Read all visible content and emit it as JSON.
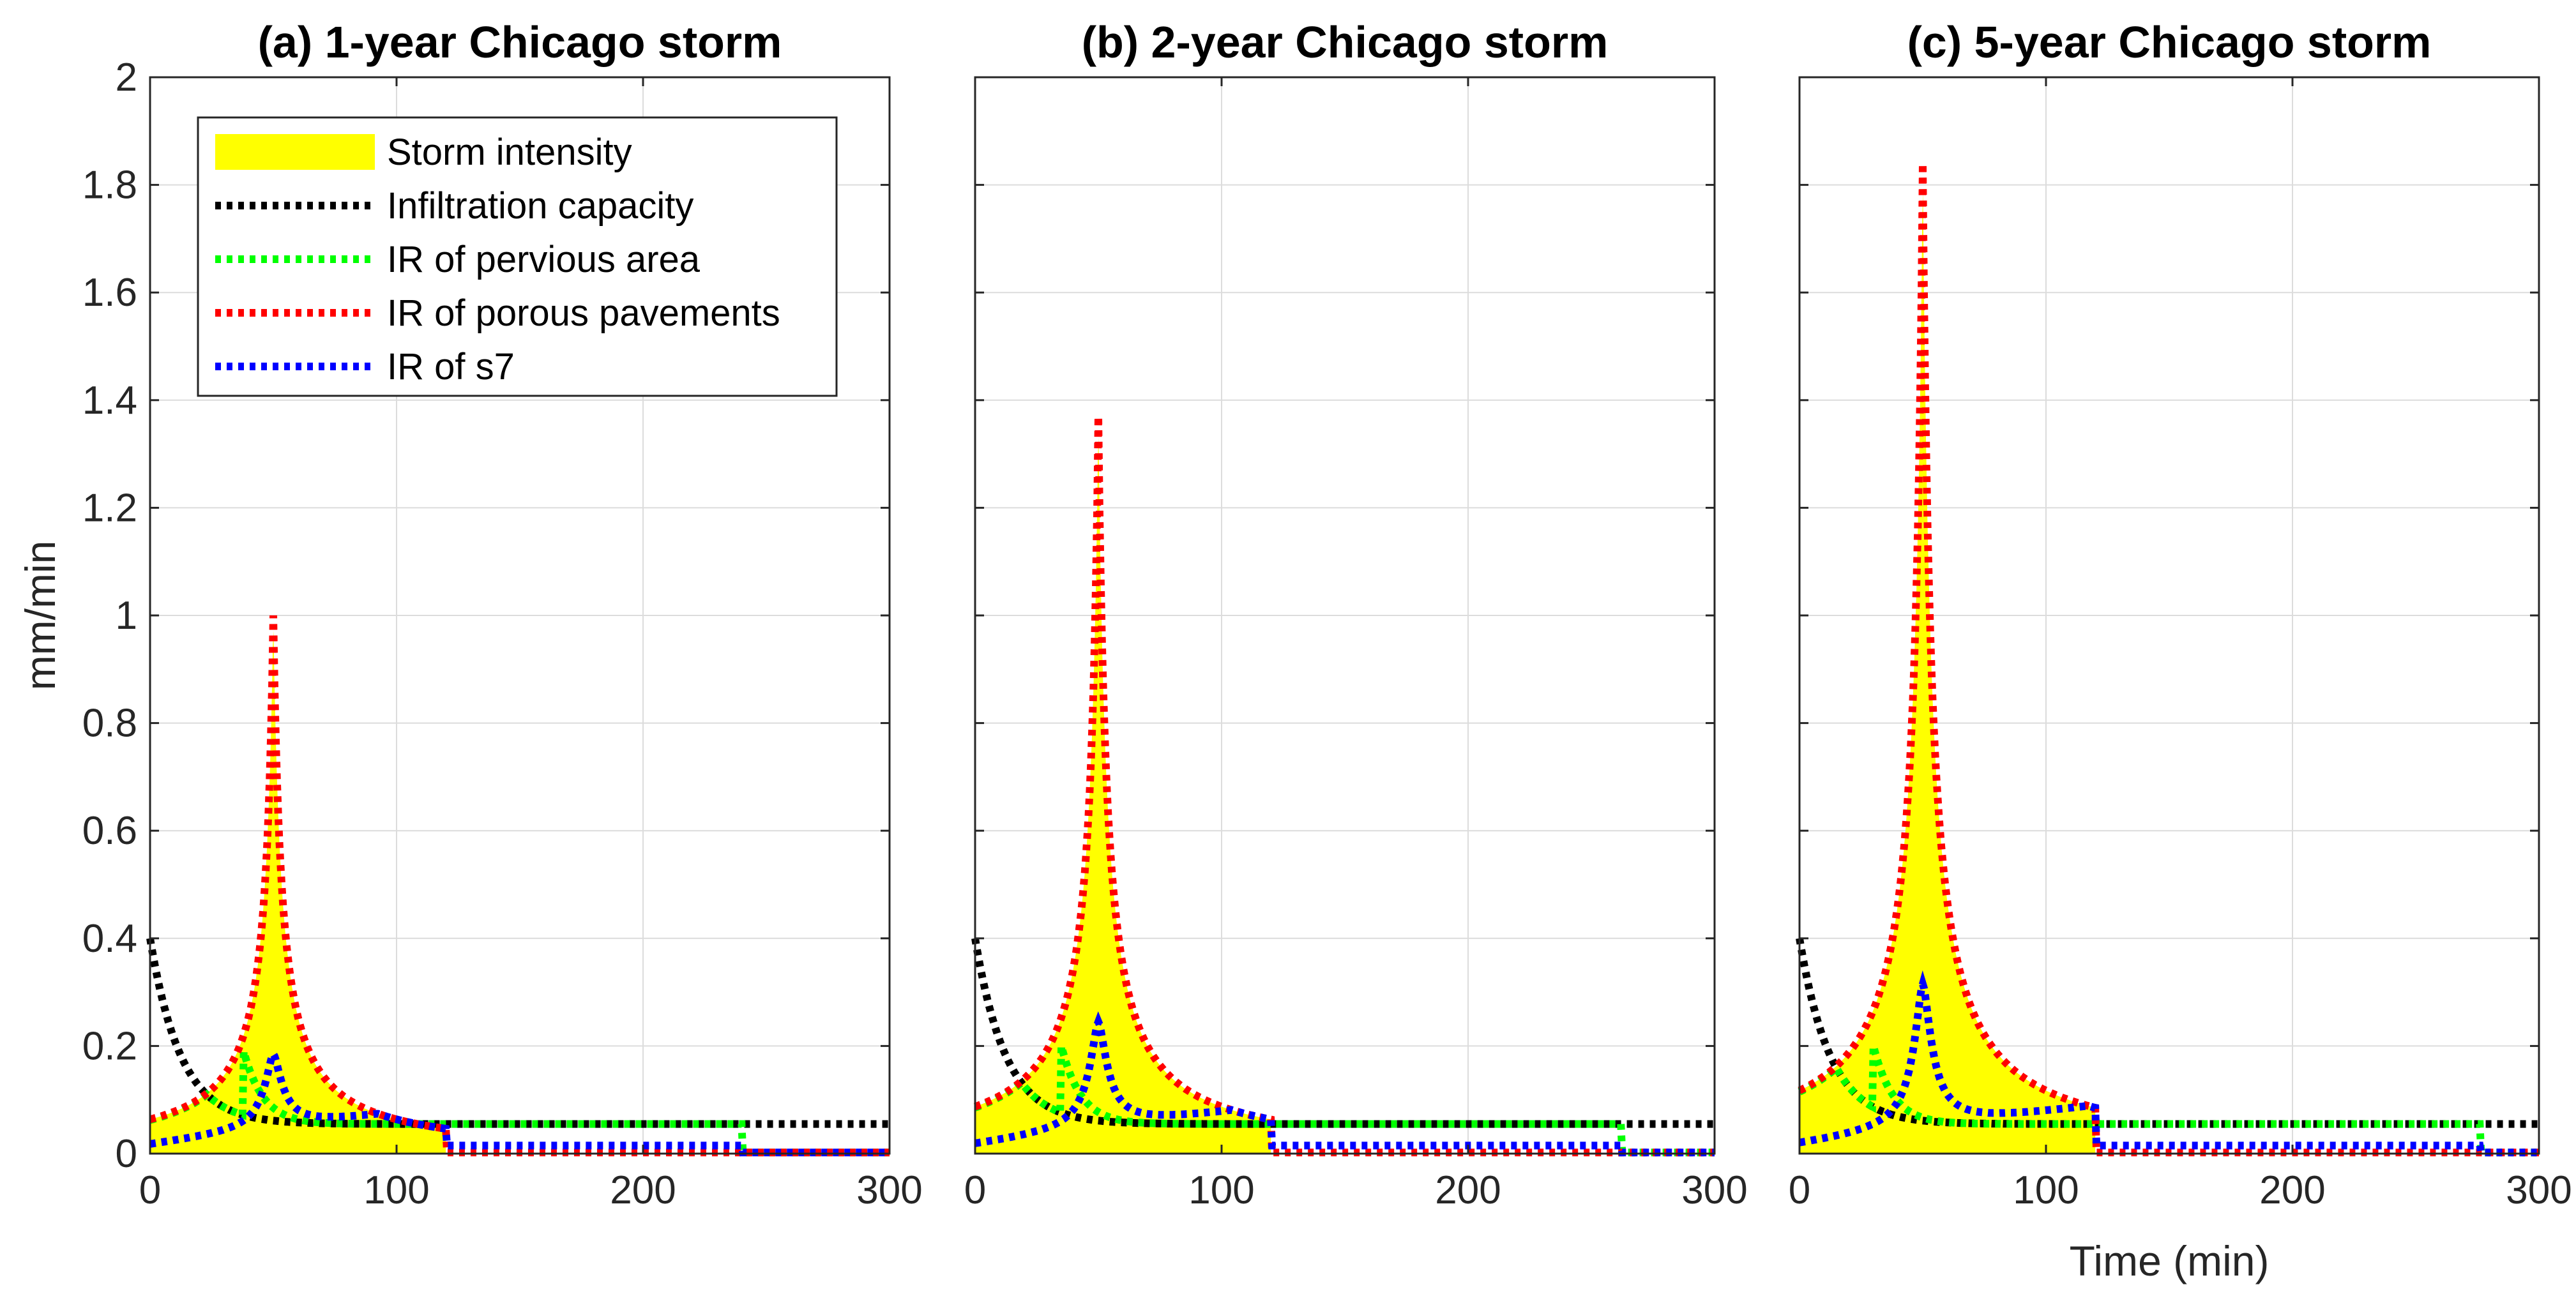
{
  "chart_data": [
    {
      "type": "line",
      "title": "(a) 1-year Chicago storm",
      "xlabel": "",
      "ylabel": "mm/min",
      "xlim": [
        0,
        300
      ],
      "ylim": [
        0,
        2
      ],
      "xticks": [
        "0",
        "100",
        "200",
        "300"
      ],
      "yticks": [
        "0",
        "0.2",
        "0.4",
        "0.6",
        "0.8",
        "1",
        "1.2",
        "1.4",
        "1.6",
        "1.8",
        "2"
      ],
      "grid": true,
      "legend_position": "top-left",
      "params": {
        "storm_peak": 1.0,
        "storm_end": 120,
        "pervious_peak": 0.19,
        "pervious_peak_t": 38,
        "pervious_end": 240,
        "s7_peak": 0.17
      },
      "series": [
        {
          "name": "Storm intensity",
          "style": "filled area",
          "color": "#ffff00",
          "peak_time": 50,
          "peak_value": 1.0,
          "end_time": 120
        },
        {
          "name": "Infiltration capacity",
          "style": "dotted",
          "color": "#000000",
          "start_value": 0.4,
          "final_value": 0.055
        },
        {
          "name": "IR of pervious area",
          "style": "dotted",
          "color": "#00ff00",
          "peak_value": 0.19,
          "steady_value": 0.055,
          "end_time": 240
        },
        {
          "name": "IR of porous pavements",
          "style": "dotted",
          "color": "#ff0000",
          "peak_value": 1.0,
          "end_time": 120
        },
        {
          "name": "IR of s7",
          "style": "dotted",
          "color": "#0000ff",
          "peak_value": 0.17,
          "steady_value": 0.015,
          "end_time": 240
        }
      ]
    },
    {
      "type": "line",
      "title": "(b) 2-year Chicago storm",
      "xlabel": "",
      "ylabel": "",
      "xlim": [
        0,
        300
      ],
      "ylim": [
        0,
        2
      ],
      "xticks": [
        "0",
        "100",
        "200",
        "300"
      ],
      "yticks": [],
      "grid": true,
      "params": {
        "storm_peak": 1.37,
        "storm_end": 120,
        "pervious_peak": 0.2,
        "pervious_peak_t": 35,
        "pervious_end": 262,
        "s7_peak": 0.23
      },
      "series": [
        {
          "name": "Storm intensity",
          "style": "filled area",
          "color": "#ffff00",
          "peak_time": 50,
          "peak_value": 1.37,
          "end_time": 120
        },
        {
          "name": "Infiltration capacity",
          "style": "dotted",
          "color": "#000000",
          "start_value": 0.4,
          "final_value": 0.055
        },
        {
          "name": "IR of pervious area",
          "style": "dotted",
          "color": "#00ff00",
          "peak_value": 0.2,
          "steady_value": 0.055,
          "end_time": 262
        },
        {
          "name": "IR of porous pavements",
          "style": "dotted",
          "color": "#ff0000",
          "peak_value": 1.37,
          "end_time": 120
        },
        {
          "name": "IR of s7",
          "style": "dotted",
          "color": "#0000ff",
          "peak_value": 0.23,
          "steady_value": 0.015,
          "end_time": 262
        }
      ]
    },
    {
      "type": "line",
      "title": "(c) 5-year Chicago storm",
      "xlabel": "Time (min)",
      "ylabel": "",
      "xlim": [
        0,
        300
      ],
      "ylim": [
        0,
        2
      ],
      "xticks": [
        "0",
        "100",
        "200",
        "300"
      ],
      "yticks": [],
      "grid": true,
      "params": {
        "storm_peak": 1.84,
        "storm_end": 120,
        "pervious_peak": 0.2,
        "pervious_peak_t": 30,
        "pervious_end": 276,
        "s7_peak": 0.3
      },
      "series": [
        {
          "name": "Storm intensity",
          "style": "filled area",
          "color": "#ffff00",
          "peak_time": 50,
          "peak_value": 1.84,
          "end_time": 120
        },
        {
          "name": "Infiltration capacity",
          "style": "dotted",
          "color": "#000000",
          "start_value": 0.4,
          "final_value": 0.055
        },
        {
          "name": "IR of pervious area",
          "style": "dotted",
          "color": "#00ff00",
          "peak_value": 0.2,
          "steady_value": 0.055,
          "end_time": 276
        },
        {
          "name": "IR of porous pavements",
          "style": "dotted",
          "color": "#ff0000",
          "peak_value": 1.84,
          "end_time": 120
        },
        {
          "name": "IR of s7",
          "style": "dotted",
          "color": "#0000ff",
          "peak_value": 0.3,
          "steady_value": 0.015,
          "end_time": 276
        }
      ]
    }
  ],
  "legend": {
    "entries": [
      {
        "label": "Storm intensity",
        "color": "#ffff00",
        "kind": "patch"
      },
      {
        "label": "Infiltration capacity",
        "color": "#000000",
        "kind": "dotted"
      },
      {
        "label": "IR of pervious area",
        "color": "#00ff00",
        "kind": "dotted"
      },
      {
        "label": "IR of porous pavements",
        "color": "#ff0000",
        "kind": "dotted"
      },
      {
        "label": "IR of s7",
        "color": "#0000ff",
        "kind": "dotted"
      }
    ]
  }
}
